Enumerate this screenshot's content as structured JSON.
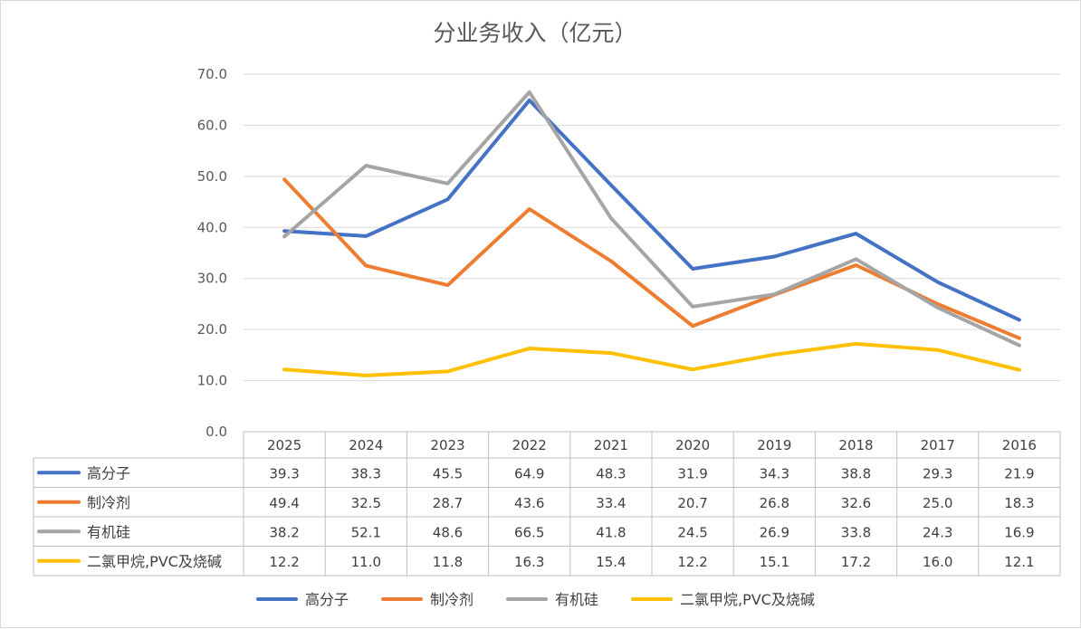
{
  "chart_data": {
    "type": "line",
    "title": "分业务收入（亿元）",
    "categories": [
      "2025",
      "2024",
      "2023",
      "2022",
      "2021",
      "2020",
      "2019",
      "2018",
      "2017",
      "2016"
    ],
    "ylim": [
      0,
      70
    ],
    "yticks": [
      "0.0",
      "10.0",
      "20.0",
      "30.0",
      "40.0",
      "50.0",
      "60.0",
      "70.0"
    ],
    "grid": true,
    "legend_position": "bottom",
    "data_table": true,
    "series": [
      {
        "name": "高分子",
        "color": "#4472C4",
        "values": [
          39.3,
          38.3,
          45.5,
          64.9,
          48.3,
          31.9,
          34.3,
          38.8,
          29.3,
          21.9
        ],
        "labels": [
          "39.3",
          "38.3",
          "45.5",
          "64.9",
          "48.3",
          "31.9",
          "34.3",
          "38.8",
          "29.3",
          "21.9"
        ]
      },
      {
        "name": "制冷剂",
        "color": "#ED7D31",
        "values": [
          49.4,
          32.5,
          28.7,
          43.6,
          33.4,
          20.7,
          26.8,
          32.6,
          25.0,
          18.3
        ],
        "labels": [
          "49.4",
          "32.5",
          "28.7",
          "43.6",
          "33.4",
          "20.7",
          "26.8",
          "32.6",
          "25.0",
          "18.3"
        ]
      },
      {
        "name": "有机硅",
        "color": "#A5A5A5",
        "values": [
          38.2,
          52.1,
          48.6,
          66.5,
          41.8,
          24.5,
          26.9,
          33.8,
          24.3,
          16.9
        ],
        "labels": [
          "38.2",
          "52.1",
          "48.6",
          "66.5",
          "41.8",
          "24.5",
          "26.9",
          "33.8",
          "24.3",
          "16.9"
        ]
      },
      {
        "name": "二氯甲烷,PVC及烧碱",
        "color": "#FFC000",
        "values": [
          12.2,
          11.0,
          11.8,
          16.3,
          15.4,
          12.2,
          15.1,
          17.2,
          16.0,
          12.1
        ],
        "labels": [
          "12.2",
          "11.0",
          "11.8",
          "16.3",
          "15.4",
          "12.2",
          "15.1",
          "17.2",
          "16.0",
          "12.1"
        ]
      }
    ]
  }
}
